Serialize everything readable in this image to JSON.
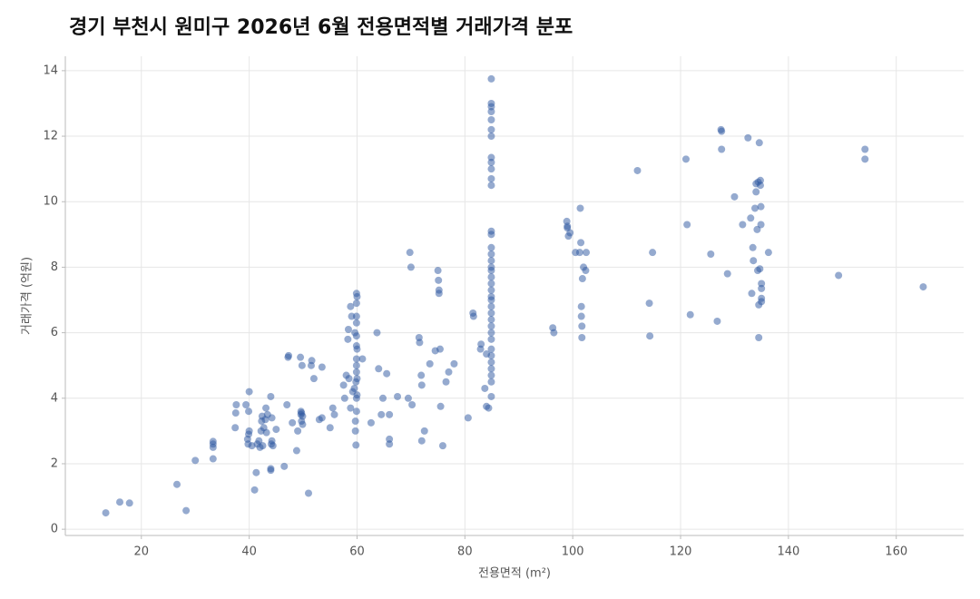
{
  "chart_data": {
    "type": "scatter",
    "title": "경기 부천시 원미구 2026년 6월 전용면적별 거래가격 분포",
    "x_label": "전용면적 (m²)",
    "y_label": "거래가격 (억원)",
    "color": "#2b55a0",
    "grid": true,
    "xlim": [
      5.9,
      172.5
    ],
    "ylim": [
      -0.19,
      14.44
    ],
    "xticks": [
      20,
      40,
      60,
      80,
      100,
      120,
      140,
      160
    ],
    "yticks": [
      0,
      2,
      4,
      6,
      8,
      10,
      12,
      14
    ],
    "x": [
      13.4,
      16,
      17.8,
      26.6,
      28.3,
      30,
      33.3,
      33.3,
      33.3,
      33.3,
      37.4,
      37.5,
      37.6,
      39.4,
      39.7,
      39.8,
      39.9,
      40,
      40,
      39.9,
      40.5,
      41,
      41.3,
      41.5,
      41.8,
      42,
      42.2,
      42.3,
      42.4,
      42.5,
      42.7,
      43,
      43.1,
      43.2,
      43.4,
      44,
      44,
      44,
      44.1,
      44.2,
      44.2,
      44.4,
      45,
      46.5,
      47,
      47.2,
      47.3,
      48,
      48.8,
      49,
      49.5,
      49.6,
      49.6,
      49.7,
      49.7,
      49.8,
      49.9,
      49.9,
      51,
      51.5,
      51.6,
      52,
      53,
      53.5,
      53.5,
      55,
      55.5,
      55.8,
      57.5,
      57.7,
      58,
      58.3,
      58.4,
      58.5,
      58.8,
      58.8,
      59,
      59.2,
      59.5,
      59.6,
      59.7,
      59.7,
      59.8,
      59.8,
      59.9,
      59.9,
      59.9,
      59.9,
      59.9,
      59.9,
      59.9,
      59.9,
      59.9,
      59.9,
      59.9,
      60,
      60,
      60,
      60,
      61,
      62.6,
      63.7,
      64,
      64.5,
      64.8,
      65.5,
      66,
      66,
      66,
      67.5,
      69.5,
      69.8,
      70,
      70.2,
      71.5,
      71.6,
      71.9,
      72,
      72,
      72.5,
      73.5,
      74.5,
      75,
      75.1,
      75.2,
      75.2,
      75.4,
      75.5,
      75.9,
      76.5,
      77,
      78,
      80.6,
      81.5,
      81.6,
      82.9,
      83,
      83.7,
      84,
      84,
      84.4,
      84.9,
      84.9,
      84.9,
      84.9,
      84.9,
      84.9,
      84.9,
      84.9,
      84.9,
      84.9,
      84.9,
      84.9,
      84.9,
      84.9,
      84.9,
      84.9,
      84.9,
      84.9,
      84.9,
      84.9,
      84.9,
      84.9,
      84.9,
      84.9,
      84.9,
      84.9,
      84.9,
      84.9,
      84.9,
      84.9,
      84.9,
      84.9,
      84.9,
      84.9,
      84.9,
      84.9,
      84.9,
      96.3,
      96.5,
      98.9,
      99,
      99,
      99.2,
      99.5,
      100.5,
      101.3,
      101.4,
      101.5,
      101.6,
      101.6,
      101.7,
      101.7,
      101.8,
      102,
      102.4,
      102.5,
      112,
      114.2,
      114.3,
      114.8,
      121,
      121.2,
      121.8,
      125.6,
      126.8,
      127.5,
      127.6,
      127.6,
      128.7,
      130,
      131.5,
      132.5,
      133,
      133.2,
      133.4,
      133.5,
      133.8,
      134,
      134,
      134.2,
      134.3,
      134.4,
      134.5,
      134.5,
      134.6,
      134.7,
      134.8,
      134.8,
      134.9,
      134.9,
      135,
      135,
      135,
      135,
      136.3,
      149.3,
      154.2,
      154.2,
      165
    ],
    "values": [
      0.5,
      0.83,
      0.8,
      1.37,
      0.57,
      2.1,
      2.15,
      2.5,
      2.6,
      2.68,
      3.1,
      3.55,
      3.8,
      3.8,
      2.75,
      2.6,
      2.9,
      3.0,
      4.2,
      3.6,
      2.55,
      1.2,
      1.73,
      2.6,
      2.7,
      2.5,
      3.0,
      3.3,
      3.45,
      2.55,
      3.1,
      3.35,
      3.7,
      2.95,
      3.5,
      4.05,
      1.85,
      1.8,
      2.6,
      2.7,
      3.4,
      2.55,
      3.05,
      1.92,
      3.8,
      5.25,
      5.3,
      3.25,
      2.4,
      3.0,
      5.25,
      3.5,
      3.6,
      3.3,
      3.55,
      5.0,
      3.2,
      3.45,
      1.1,
      5.0,
      5.15,
      4.6,
      3.35,
      3.4,
      4.95,
      3.1,
      3.7,
      3.5,
      4.4,
      4.0,
      4.7,
      5.8,
      6.1,
      4.6,
      6.8,
      3.7,
      6.5,
      4.2,
      4.3,
      6.0,
      3.3,
      3.0,
      2.57,
      4.5,
      7.2,
      6.9,
      5.6,
      5.9,
      5.2,
      5.0,
      4.8,
      4.0,
      3.6,
      6.3,
      6.5,
      7.1,
      5.5,
      4.6,
      4.1,
      5.2,
      3.25,
      6.0,
      4.9,
      3.5,
      4.0,
      4.75,
      2.75,
      2.6,
      3.5,
      4.05,
      4.0,
      8.45,
      8.0,
      3.8,
      5.85,
      5.7,
      4.7,
      4.4,
      2.7,
      3.0,
      5.05,
      5.45,
      7.9,
      7.6,
      7.3,
      7.2,
      5.5,
      3.75,
      2.55,
      4.5,
      4.8,
      5.05,
      3.4,
      6.6,
      6.5,
      5.5,
      5.65,
      4.3,
      5.35,
      3.75,
      3.7,
      13.75,
      13.0,
      12.9,
      12.75,
      12.5,
      12.2,
      12.0,
      11.35,
      11.2,
      11.0,
      10.7,
      10.5,
      9.1,
      9.0,
      8.6,
      8.4,
      8.2,
      8.0,
      7.9,
      7.7,
      7.5,
      7.3,
      7.1,
      7.0,
      6.8,
      6.6,
      6.4,
      6.2,
      6.0,
      5.8,
      5.5,
      5.3,
      5.1,
      4.9,
      4.7,
      4.5,
      4.05,
      6.15,
      6.0,
      9.4,
      9.25,
      9.2,
      8.95,
      9.05,
      8.45,
      8.45,
      9.8,
      8.75,
      6.8,
      6.5,
      6.2,
      5.85,
      7.65,
      8.0,
      7.9,
      8.45,
      10.95,
      6.9,
      5.9,
      8.45,
      11.3,
      9.3,
      6.55,
      8.4,
      6.35,
      12.2,
      12.15,
      11.6,
      7.8,
      10.15,
      9.3,
      11.95,
      9.5,
      7.2,
      8.6,
      8.2,
      9.8,
      10.55,
      10.3,
      9.15,
      7.9,
      10.6,
      6.85,
      5.85,
      11.8,
      7.95,
      10.65,
      10.5,
      9.85,
      9.3,
      7.5,
      7.35,
      7.05,
      6.95,
      8.45,
      7.75,
      11.6,
      11.3,
      7.4
    ]
  }
}
